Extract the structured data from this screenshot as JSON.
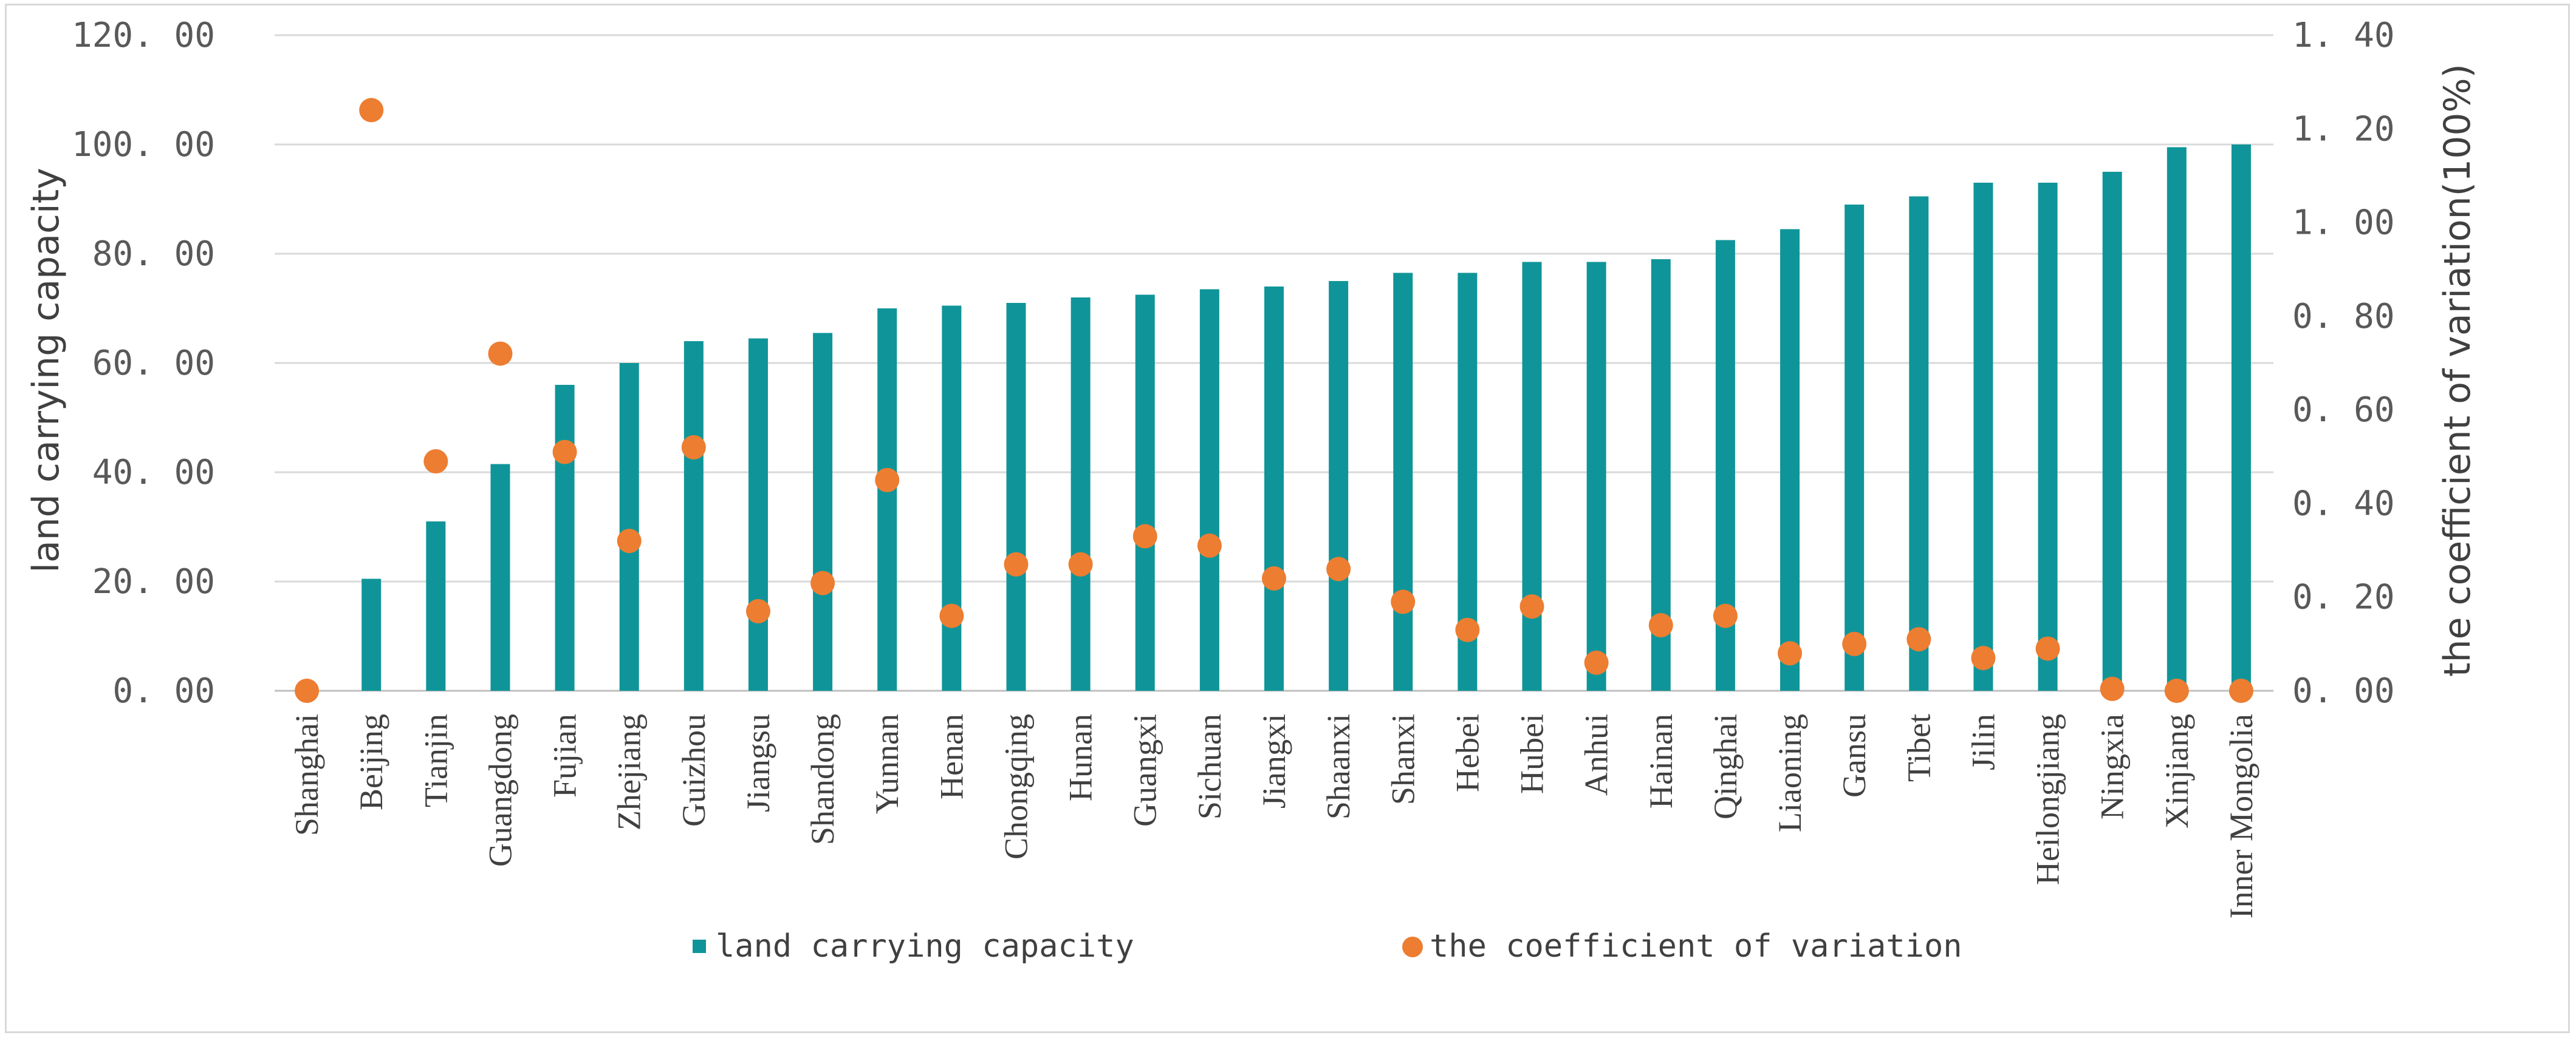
{
  "chart_data": {
    "type": "bar+scatter",
    "title": "",
    "categories": [
      "Shanghai",
      "Beijing",
      "Tianjin",
      "Guangdong",
      "Fujian",
      "Zhejiang",
      "Guizhou",
      "Jiangsu",
      "Shandong",
      "Yunnan",
      "Henan",
      "Chongqing",
      "Hunan",
      "Guangxi",
      "Sichuan",
      "Jiangxi",
      "Shaanxi",
      "Shanxi",
      "Hebei",
      "Hubei",
      "Anhui",
      "Hainan",
      "Qinghai",
      "Liaoning",
      "Gansu",
      "Tibet",
      "Jilin",
      "Heilongjiang",
      "Ningxia",
      "Xinjiang",
      "Inner Mongolia"
    ],
    "series": [
      {
        "name": "land carrying capacity",
        "type": "bar",
        "axis": "left",
        "color": "#0f9599",
        "values": [
          0,
          20.5,
          31,
          41.5,
          56,
          60,
          64,
          64.5,
          65.5,
          70,
          70.5,
          71,
          72,
          72.5,
          73.5,
          74,
          75,
          76.5,
          76.5,
          78.5,
          78.5,
          79,
          82.5,
          84.5,
          89,
          90.5,
          93,
          93,
          95,
          99.5,
          100
        ]
      },
      {
        "name": "the coefficient of variation",
        "type": "scatter",
        "axis": "right",
        "color": "#ed7d31",
        "values": [
          0,
          1.24,
          0.49,
          0.72,
          0.51,
          0.32,
          0.52,
          0.17,
          0.23,
          0.45,
          0.16,
          0.27,
          0.27,
          0.33,
          0.31,
          0.24,
          0.26,
          0.19,
          0.13,
          0.18,
          0.06,
          0.14,
          0.16,
          0.08,
          0.1,
          0.11,
          0.07,
          0.09,
          0.004,
          0,
          0
        ]
      }
    ],
    "ylabel": "land carrying capacity",
    "ylabel_right": "the coefficient of variation(100%)",
    "ylim": [
      0,
      120
    ],
    "ylim_right": [
      0,
      1.4
    ],
    "yticks": [
      "0. 00",
      "20. 00",
      "40. 00",
      "60. 00",
      "80. 00",
      "100. 00",
      "120. 00"
    ],
    "yticks_right": [
      "0. 00",
      "0. 20",
      "0. 40",
      "0. 60",
      "0. 80",
      "1. 00",
      "1. 20",
      "1. 40"
    ],
    "grid": true,
    "legend_position": "bottom"
  }
}
